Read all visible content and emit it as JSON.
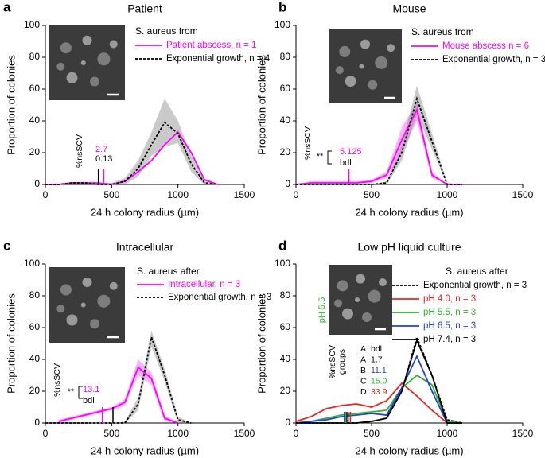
{
  "chart_data": [
    {
      "type": "line",
      "panel": "a",
      "title": "Patient",
      "xlabel": "24 h colony radius (µm)",
      "ylabel": "Proportion of colonies",
      "xlim": [
        0,
        1500
      ],
      "ylim": [
        0,
        100
      ],
      "xticks": [
        0,
        500,
        1000,
        1500
      ],
      "yticks": [
        0,
        20,
        40,
        60,
        80,
        100
      ],
      "legend_title": "S. aureus from",
      "x": [
        0,
        100,
        200,
        300,
        400,
        500,
        600,
        700,
        800,
        900,
        1000,
        1100,
        1200,
        1300
      ],
      "series": [
        {
          "name": "Patient abscess, n = 1",
          "color": "#ff00ff",
          "style": "solid",
          "values": [
            0,
            0,
            1,
            1,
            1,
            0,
            2,
            8,
            15,
            25,
            33,
            20,
            3,
            0
          ]
        },
        {
          "name": "Exponential growth, n = 4",
          "color": "#000000",
          "style": "dashed",
          "values": [
            0,
            0,
            1,
            1,
            0,
            0,
            2,
            10,
            25,
            39,
            32,
            13,
            1,
            0
          ],
          "lower": [
            0,
            0,
            0,
            0,
            0,
            0,
            0,
            5,
            18,
            24,
            26,
            8,
            0,
            0
          ],
          "upper": [
            0,
            0,
            1,
            1,
            1,
            1,
            4,
            15,
            33,
            54,
            40,
            18,
            3,
            0
          ]
        }
      ],
      "nsscv": {
        "label": "%nsSCV",
        "values": [
          {
            "text": "2.7",
            "color": "#ff00ff",
            "x": 440
          },
          {
            "text": "0.13",
            "color": "#000000",
            "x": 400
          }
        ]
      }
    },
    {
      "type": "line",
      "panel": "b",
      "title": "Mouse",
      "xlabel": "24 h colony radius (µm)",
      "ylabel": "Proportion of colonies",
      "xlim": [
        0,
        1500
      ],
      "ylim": [
        0,
        100
      ],
      "xticks": [
        0,
        500,
        1000,
        1500
      ],
      "yticks": [
        0,
        20,
        40,
        60,
        80,
        100
      ],
      "legend_title": "S. aureus from",
      "x": [
        0,
        100,
        200,
        300,
        400,
        500,
        600,
        700,
        800,
        900,
        1000,
        1100
      ],
      "series": [
        {
          "name": "Mouse abscess n = 6",
          "color": "#ff00ff",
          "style": "solid",
          "values": [
            0,
            1,
            1,
            1,
            1,
            2,
            6,
            28,
            47,
            6,
            0,
            0
          ],
          "lower": [
            0,
            0,
            0,
            0,
            0,
            1,
            4,
            20,
            40,
            4,
            0,
            0
          ],
          "upper": [
            0,
            2,
            2,
            2,
            2,
            3,
            8,
            36,
            52,
            8,
            0,
            0
          ]
        },
        {
          "name": "Exponential growth, n = 3",
          "color": "#000000",
          "style": "dashed",
          "values": [
            0,
            0,
            0,
            0,
            0,
            0,
            1,
            20,
            54,
            27,
            0,
            0
          ],
          "lower": [
            0,
            0,
            0,
            0,
            0,
            0,
            0,
            15,
            44,
            22,
            0,
            0
          ],
          "upper": [
            0,
            0,
            0,
            0,
            0,
            0,
            2,
            25,
            62,
            32,
            1,
            0
          ]
        }
      ],
      "nsscv": {
        "label": "%nsSCV",
        "sig": "**",
        "values": [
          {
            "text": "5.125",
            "color": "#ff00ff",
            "x": 350
          },
          {
            "text": "bdl",
            "color": "#000000",
            "x": null
          }
        ]
      }
    },
    {
      "type": "line",
      "panel": "c",
      "title": "Intracellular",
      "xlabel": "24 h colony radius (µm)",
      "ylabel": "Proportion of colonies",
      "xlim": [
        0,
        1500
      ],
      "ylim": [
        0,
        100
      ],
      "xticks": [
        0,
        500,
        1000,
        1500
      ],
      "yticks": [
        0,
        20,
        40,
        60,
        80,
        100
      ],
      "legend_title": "S. aureus after",
      "x": [
        0,
        100,
        200,
        300,
        400,
        500,
        600,
        700,
        800,
        900,
        1000,
        1100
      ],
      "series": [
        {
          "name": "Intracellular, n = 3",
          "color": "#ff00ff",
          "style": "solid",
          "values": [
            null,
            1,
            3,
            5,
            7,
            9,
            13,
            35,
            28,
            3,
            0,
            null
          ],
          "lower": [
            null,
            0,
            2,
            4,
            6,
            8,
            11,
            30,
            24,
            1,
            0,
            null
          ],
          "upper": [
            null,
            2,
            4,
            6,
            8,
            10,
            15,
            40,
            32,
            5,
            0,
            null
          ]
        },
        {
          "name": "Exponential growth, n = 3",
          "color": "#000000",
          "style": "dashed",
          "values": [
            0,
            0,
            0,
            0,
            0,
            0,
            0,
            12,
            54,
            30,
            2,
            0
          ],
          "lower": [
            0,
            0,
            0,
            0,
            0,
            0,
            0,
            8,
            48,
            26,
            0,
            0
          ],
          "upper": [
            0,
            0,
            0,
            0,
            0,
            0,
            1,
            16,
            58,
            34,
            4,
            0
          ]
        }
      ],
      "nsscv": {
        "label": "%nsSCV",
        "sig": "**",
        "values": [
          {
            "text": "13.1",
            "color": "#ff00ff",
            "x": 430
          },
          {
            "text": "bdl",
            "color": "#000000",
            "x": 510
          }
        ]
      }
    },
    {
      "type": "line",
      "panel": "d",
      "title": "Low pH liquid culture",
      "xlabel": "24 h colony radius (µm)",
      "ylabel": "Proportion of colonies",
      "xlim": [
        0,
        1500
      ],
      "ylim": [
        0,
        100
      ],
      "xticks": [
        0,
        500,
        1000,
        1500
      ],
      "yticks": [
        0,
        20,
        40,
        60,
        80,
        100
      ],
      "legend_title": "S. aureus after",
      "inset_label": "pH 5.5",
      "x": [
        0,
        100,
        200,
        300,
        400,
        500,
        600,
        700,
        800,
        900,
        1000,
        1100
      ],
      "series": [
        {
          "name": "Exponential growth, n = 3",
          "color": "#000000",
          "style": "dashed",
          "values": [
            0,
            0,
            0,
            0,
            0,
            1,
            3,
            20,
            54,
            30,
            2,
            0
          ]
        },
        {
          "name": "pH 4.0, n = 3",
          "color": "#e8251f",
          "style": "solid",
          "values": [
            1,
            4,
            9,
            11,
            12,
            10,
            14,
            25,
            17,
            8,
            0,
            0
          ]
        },
        {
          "name": "pH 5.5, n = 3",
          "color": "#2db52d",
          "style": "solid",
          "values": [
            0,
            1,
            3,
            5,
            6,
            7,
            8,
            22,
            30,
            24,
            1,
            0
          ]
        },
        {
          "name": "pH 6.5, n = 3",
          "color": "#1f3fd8",
          "style": "solid",
          "values": [
            0,
            1,
            2,
            4,
            5,
            6,
            5,
            22,
            42,
            20,
            0,
            0
          ]
        },
        {
          "name": "pH 7.4, n = 3",
          "color": "#000000",
          "style": "solid",
          "values": [
            0,
            0,
            0,
            0,
            0,
            1,
            3,
            20,
            52,
            30,
            0,
            0
          ]
        }
      ],
      "nsscv": {
        "label": "%nsSCV",
        "sublabel": "groups",
        "values": [
          {
            "group": "A",
            "text": "bdl",
            "color": "#000000",
            "x": 345
          },
          {
            "group": "A",
            "text": "1.7",
            "color": "#000000",
            "x": 335
          },
          {
            "group": "B",
            "text": "11.1",
            "color": "#1f3fd8",
            "x": 320
          },
          {
            "group": "C",
            "text": "15.0",
            "color": "#2db52d",
            "x": 330
          },
          {
            "group": "D",
            "text": "33.9",
            "color": "#e8251f",
            "x": 360
          }
        ]
      }
    }
  ]
}
